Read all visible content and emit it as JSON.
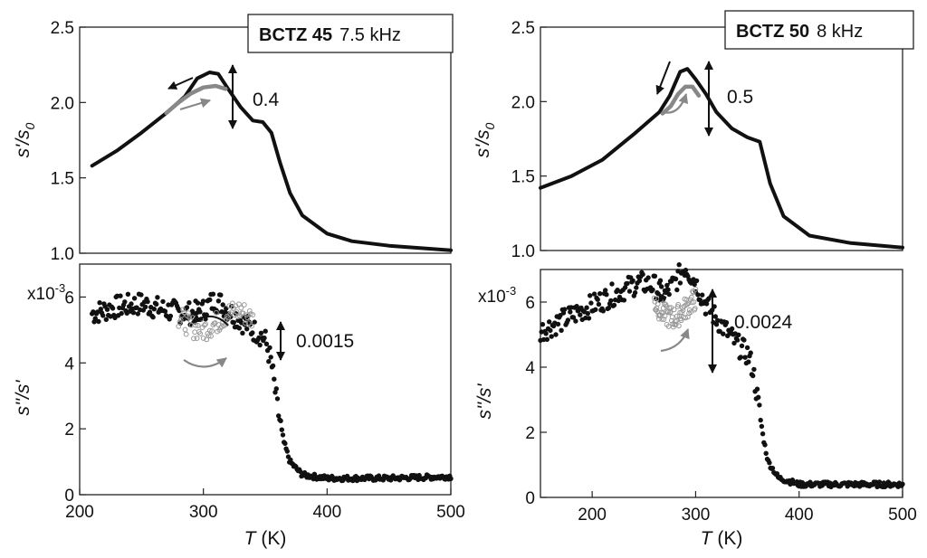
{
  "chart_data": [
    {
      "type": "line",
      "panel": "left-top",
      "box_label_bold": "BCTZ 45",
      "box_label_freq": "7.5 kHz",
      "annotation": "0.4",
      "ylabel_main": "s'/s",
      "ylabel_sub": "0",
      "ylim": [
        1.0,
        2.5
      ],
      "yticks": [
        1.0,
        1.5,
        2.0,
        2.5
      ],
      "yticklabels": [
        "1.0",
        "1.5",
        "2.0",
        "2.5"
      ],
      "xlim": [
        200,
        500
      ],
      "series": [
        {
          "color": "#111111",
          "x": [
            210,
            230,
            250,
            270,
            285,
            295,
            305,
            312,
            320,
            330,
            340,
            348,
            355,
            362,
            370,
            380,
            400,
            420,
            450,
            500
          ],
          "y": [
            1.58,
            1.68,
            1.8,
            1.93,
            2.04,
            2.16,
            2.2,
            2.19,
            2.09,
            1.97,
            1.88,
            1.87,
            1.8,
            1.6,
            1.4,
            1.25,
            1.13,
            1.08,
            1.05,
            1.02
          ]
        },
        {
          "color": "#888888",
          "x": [
            270,
            280,
            290,
            300,
            310,
            318
          ],
          "y": [
            1.93,
            2.0,
            2.06,
            2.1,
            2.11,
            2.09
          ]
        }
      ]
    },
    {
      "type": "scatter",
      "panel": "left-bottom",
      "annotation": "0.0015",
      "multiplier": "x10",
      "multiplier_exp": "-3",
      "ylabel_main": "s''/s'",
      "ylim": [
        0,
        7
      ],
      "yticks": [
        0,
        2,
        4,
        6
      ],
      "yticklabels": [
        "0",
        "2",
        "4",
        "6"
      ],
      "xlim": [
        200,
        500
      ],
      "xticks": [
        200,
        300,
        400,
        500
      ],
      "xticklabels": [
        "200",
        "300",
        "400",
        "500"
      ],
      "xlabel_italic": "T",
      "xlabel_unit": "(K)",
      "series": [
        {
          "color": "#111111",
          "x": [
            210,
            230,
            250,
            270,
            290,
            300,
            305,
            310,
            315,
            320,
            330,
            340,
            345,
            350,
            355,
            360,
            365,
            370,
            380,
            400,
            420,
            450,
            500
          ],
          "y": [
            5.5,
            5.7,
            5.8,
            5.6,
            5.5,
            5.6,
            5.8,
            5.9,
            5.8,
            5.6,
            5.3,
            5.0,
            4.9,
            4.7,
            4.0,
            2.6,
            1.6,
            1.0,
            0.6,
            0.5,
            0.5,
            0.5,
            0.55
          ]
        },
        {
          "color": "#999999",
          "x": [
            280,
            290,
            300,
            310,
            320,
            330,
            340
          ],
          "y": [
            5.4,
            5.1,
            5.0,
            5.2,
            5.5,
            5.6,
            5.3
          ]
        }
      ]
    },
    {
      "type": "line",
      "panel": "right-top",
      "box_label_bold": "BCTZ 50",
      "box_label_freq": "8 kHz",
      "annotation": "0.5",
      "ylabel_main": "s'/s",
      "ylabel_sub": "0",
      "ylim": [
        1.0,
        2.5
      ],
      "yticks": [
        1.0,
        1.5,
        2.0,
        2.5
      ],
      "yticklabels": [
        "1.0",
        "1.5",
        "2.0",
        "2.5"
      ],
      "xlim": [
        150,
        500
      ],
      "series": [
        {
          "color": "#111111",
          "x": [
            150,
            180,
            210,
            240,
            255,
            265,
            275,
            285,
            292,
            300,
            310,
            320,
            335,
            350,
            362,
            372,
            385,
            410,
            450,
            500
          ],
          "y": [
            1.42,
            1.5,
            1.61,
            1.78,
            1.87,
            1.93,
            2.04,
            2.2,
            2.22,
            2.15,
            2.05,
            1.93,
            1.82,
            1.76,
            1.73,
            1.45,
            1.23,
            1.1,
            1.05,
            1.02
          ]
        },
        {
          "color": "#888888",
          "x": [
            268,
            276,
            283,
            290,
            297,
            303
          ],
          "y": [
            1.92,
            1.97,
            2.05,
            2.1,
            2.1,
            2.04
          ]
        }
      ]
    },
    {
      "type": "scatter",
      "panel": "right-bottom",
      "annotation": "0.0024",
      "multiplier": "x10",
      "multiplier_exp": "-3",
      "ylabel_main": "s''/s'",
      "ylim": [
        0,
        7
      ],
      "yticks": [
        0,
        2,
        4,
        6
      ],
      "yticklabels": [
        "0",
        "2",
        "4",
        "6"
      ],
      "xlim": [
        150,
        500
      ],
      "xticks": [
        200,
        300,
        400,
        500
      ],
      "xticklabels": [
        "200",
        "300",
        "400",
        "500"
      ],
      "xlabel_italic": "T",
      "xlabel_unit": "(K)",
      "series": [
        {
          "color": "#111111",
          "x": [
            150,
            175,
            200,
            225,
            245,
            260,
            270,
            280,
            290,
            300,
            310,
            320,
            330,
            340,
            350,
            355,
            360,
            365,
            370,
            380,
            400,
            430,
            460,
            500
          ],
          "y": [
            5.1,
            5.5,
            5.9,
            6.3,
            6.6,
            6.5,
            6.2,
            6.6,
            7.1,
            6.6,
            5.9,
            5.5,
            5.1,
            4.7,
            4.4,
            4.0,
            3.0,
            1.9,
            1.1,
            0.6,
            0.4,
            0.4,
            0.4,
            0.4
          ]
        },
        {
          "color": "#999999",
          "x": [
            260,
            270,
            280,
            290,
            300
          ],
          "y": [
            6.0,
            5.6,
            5.5,
            5.8,
            6.1
          ]
        }
      ]
    }
  ]
}
